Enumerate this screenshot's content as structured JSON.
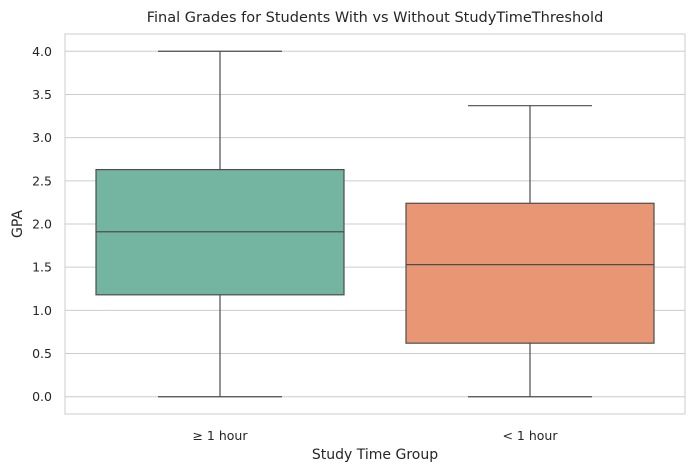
{
  "chart_data": {
    "type": "box",
    "title": "Final Grades for Students With vs Without StudyTimeThreshold",
    "xlabel": "Study Time Group",
    "ylabel": "GPA",
    "ylim": [
      -0.2,
      4.2
    ],
    "yticks": [
      "0.0",
      "0.5",
      "1.0",
      "1.5",
      "2.0",
      "2.5",
      "3.0",
      "3.5",
      "4.0"
    ],
    "grid": true,
    "categories": [
      "≥ 1 hour",
      "< 1 hour"
    ],
    "boxes": [
      {
        "category": "≥ 1 hour",
        "min": 0.0,
        "q1": 1.18,
        "median": 1.91,
        "q3": 2.63,
        "max": 4.0,
        "color": "#73b5a0"
      },
      {
        "category": "< 1 hour",
        "min": 0.0,
        "q1": 0.62,
        "median": 1.53,
        "q3": 2.24,
        "max": 3.37,
        "color": "#e99674"
      }
    ]
  }
}
